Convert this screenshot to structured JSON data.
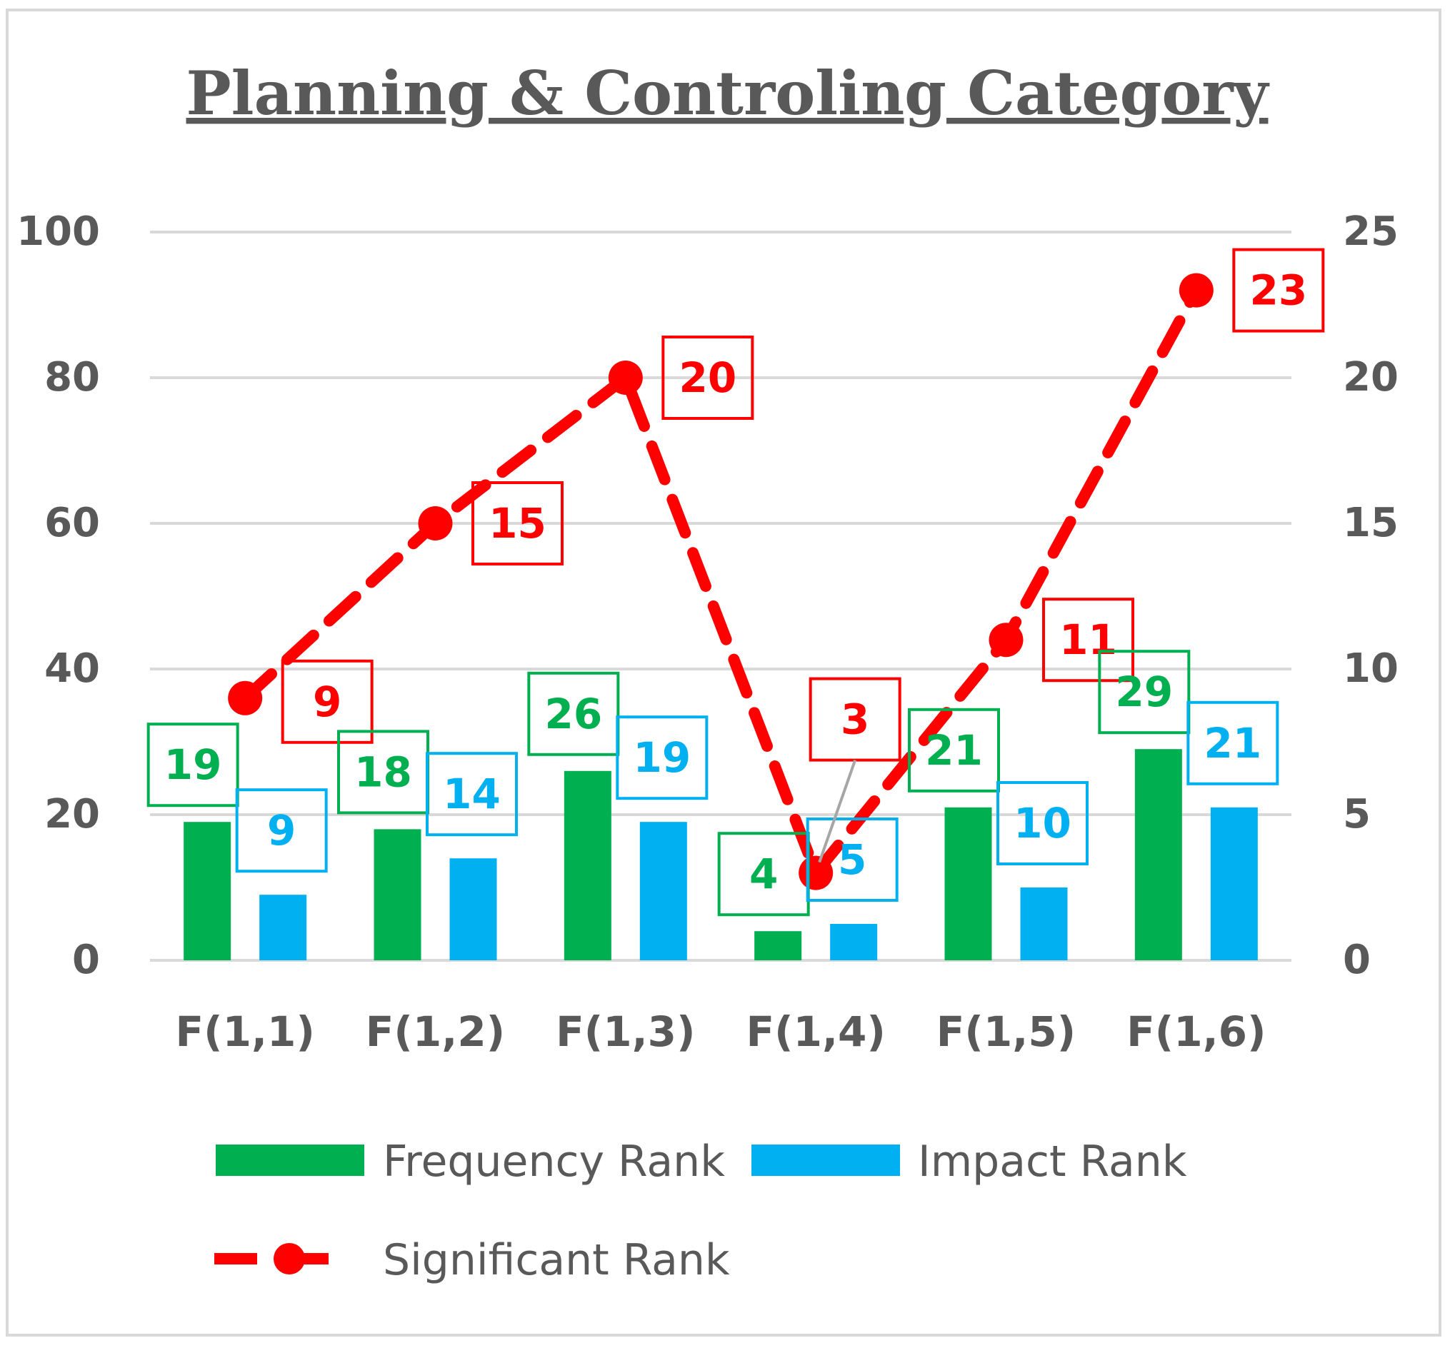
{
  "chart_data": {
    "type": "bar",
    "title": "Planning & Controling Category",
    "categories": [
      "F(1,1)",
      "F(1,2)",
      "F(1,3)",
      "F(1,4)",
      "F(1,5)",
      "F(1,6)"
    ],
    "series": [
      {
        "name": "Frequency Rank",
        "kind": "bar",
        "axis": "left",
        "color": "#00b050",
        "values": [
          19,
          18,
          26,
          4,
          21,
          29
        ]
      },
      {
        "name": "Impact Rank",
        "kind": "bar",
        "axis": "left",
        "color": "#00b0f0",
        "values": [
          9,
          14,
          19,
          5,
          10,
          21
        ]
      },
      {
        "name": "Significant Rank",
        "kind": "line",
        "axis": "right",
        "color": "#ff0000",
        "line_style": "dashed",
        "marker": "circle",
        "values": [
          9,
          15,
          20,
          3,
          11,
          23
        ]
      }
    ],
    "y_left": {
      "min": 0,
      "max": 100,
      "ticks": [
        "0",
        "20",
        "40",
        "60",
        "80",
        "100"
      ]
    },
    "y_right": {
      "min": 0,
      "max": 25,
      "ticks": [
        "0",
        "5",
        "10",
        "15",
        "20",
        "25"
      ]
    },
    "grid": true,
    "legend_position": "bottom",
    "data_labels": true
  }
}
